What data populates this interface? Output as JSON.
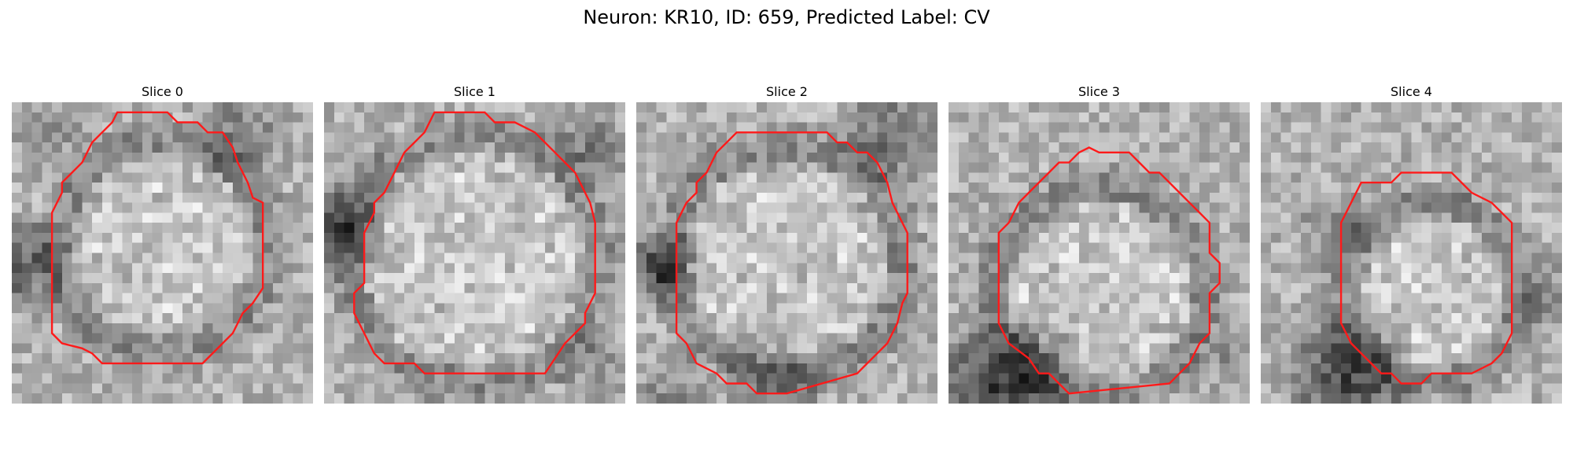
{
  "figure": {
    "title": "Neuron: KR10, ID: 659, Predicted Label: CV"
  },
  "colors": {
    "contour": "#ff1a1a",
    "background": "#ffffff"
  },
  "panels": [
    {
      "title": "Slice 0"
    },
    {
      "title": "Slice 1"
    },
    {
      "title": "Slice 2"
    },
    {
      "title": "Slice 3"
    },
    {
      "title": "Slice 4"
    }
  ]
}
